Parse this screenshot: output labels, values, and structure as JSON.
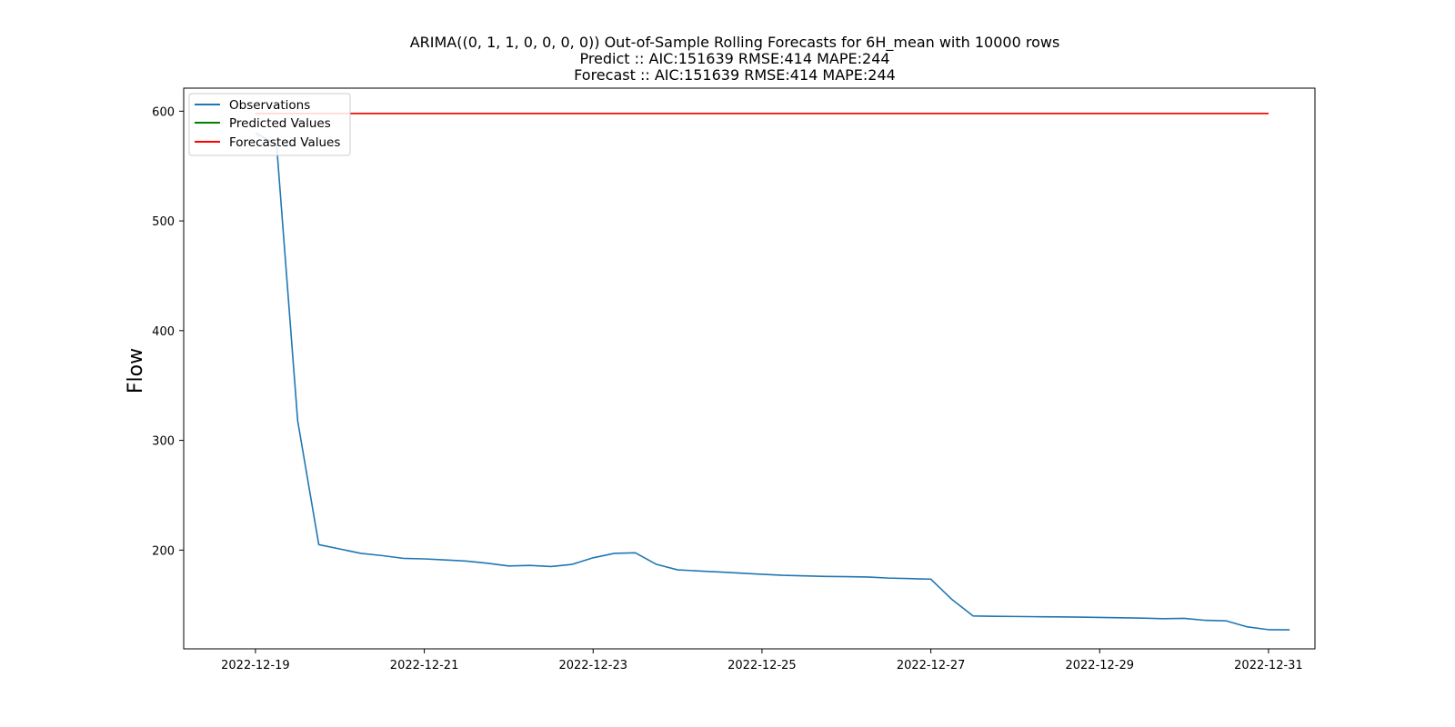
{
  "chart_data": {
    "type": "line",
    "title_lines": [
      "ARIMA((0, 1, 1, 0, 0, 0, 0)) Out-of-Sample Rolling Forecasts for 6H_mean with 10000 rows",
      "Predict :: AIC:151639 RMSE:414 MAPE:244",
      "Forecast :: AIC:151639 RMSE:414 MAPE:244"
    ],
    "xlabel": "",
    "ylabel": "Flow",
    "x_ticks": [
      "2022-12-19",
      "2022-12-21",
      "2022-12-23",
      "2022-12-25",
      "2022-12-27",
      "2022-12-29",
      "2022-12-31"
    ],
    "y_ticks": [
      200,
      300,
      400,
      500,
      600
    ],
    "xlim": [
      "2022-12-18 03:36",
      "2022-12-31 13:12"
    ],
    "ylim": [
      110,
      621
    ],
    "grid": false,
    "legend_position": "top-left",
    "legend": [
      {
        "name": "Observations",
        "color": "#1f77b4"
      },
      {
        "name": "Predicted Values",
        "color": "#008000"
      },
      {
        "name": "Forecasted Values",
        "color": "#ff0000"
      }
    ],
    "series": [
      {
        "name": "Observations",
        "color": "#1f77b4",
        "points": [
          [
            "2022-12-19 00:00",
            580
          ],
          [
            "2022-12-19 06:00",
            570
          ],
          [
            "2022-12-19 12:00",
            318
          ],
          [
            "2022-12-19 18:00",
            205
          ],
          [
            "2022-12-20 00:00",
            201
          ],
          [
            "2022-12-20 06:00",
            197
          ],
          [
            "2022-12-20 12:00",
            195
          ],
          [
            "2022-12-20 18:00",
            192.5
          ],
          [
            "2022-12-21 00:00",
            192
          ],
          [
            "2022-12-21 06:00",
            191
          ],
          [
            "2022-12-21 12:00",
            190
          ],
          [
            "2022-12-21 18:00",
            188
          ],
          [
            "2022-12-22 00:00",
            185.5
          ],
          [
            "2022-12-22 06:00",
            186
          ],
          [
            "2022-12-22 12:00",
            185
          ],
          [
            "2022-12-22 18:00",
            187
          ],
          [
            "2022-12-23 00:00",
            193
          ],
          [
            "2022-12-23 06:00",
            197
          ],
          [
            "2022-12-23 12:00",
            197.5
          ],
          [
            "2022-12-23 18:00",
            187
          ],
          [
            "2022-12-24 00:00",
            182
          ],
          [
            "2022-12-24 06:00",
            181
          ],
          [
            "2022-12-24 12:00",
            180
          ],
          [
            "2022-12-24 18:00",
            179
          ],
          [
            "2022-12-25 00:00",
            178
          ],
          [
            "2022-12-25 06:00",
            177
          ],
          [
            "2022-12-25 12:00",
            176.5
          ],
          [
            "2022-12-25 18:00",
            176
          ],
          [
            "2022-12-26 00:00",
            175.8
          ],
          [
            "2022-12-26 06:00",
            175.5
          ],
          [
            "2022-12-26 12:00",
            174.5
          ],
          [
            "2022-12-26 18:00",
            174
          ],
          [
            "2022-12-27 00:00",
            173.5
          ],
          [
            "2022-12-27 06:00",
            155
          ],
          [
            "2022-12-27 12:00",
            140
          ],
          [
            "2022-12-27 18:00",
            139.7
          ],
          [
            "2022-12-28 00:00",
            139.5
          ],
          [
            "2022-12-28 06:00",
            139.3
          ],
          [
            "2022-12-28 12:00",
            139.1
          ],
          [
            "2022-12-28 18:00",
            138.9
          ],
          [
            "2022-12-29 00:00",
            138.6
          ],
          [
            "2022-12-29 06:00",
            138.3
          ],
          [
            "2022-12-29 12:00",
            138
          ],
          [
            "2022-12-29 18:00",
            137.5
          ],
          [
            "2022-12-30 00:00",
            137.8
          ],
          [
            "2022-12-30 06:00",
            136
          ],
          [
            "2022-12-30 12:00",
            135.5
          ],
          [
            "2022-12-30 18:00",
            130
          ],
          [
            "2022-12-31 00:00",
            127.5
          ],
          [
            "2022-12-31 06:00",
            127.3
          ]
        ]
      },
      {
        "name": "Predicted Values",
        "color": "#008000",
        "points": [
          [
            "2022-12-19 00:00",
            598
          ],
          [
            "2022-12-31 00:00",
            598
          ]
        ]
      },
      {
        "name": "Forecasted Values",
        "color": "#ff0000",
        "points": [
          [
            "2022-12-19 00:00",
            598
          ],
          [
            "2022-12-31 00:00",
            598
          ]
        ]
      }
    ]
  }
}
